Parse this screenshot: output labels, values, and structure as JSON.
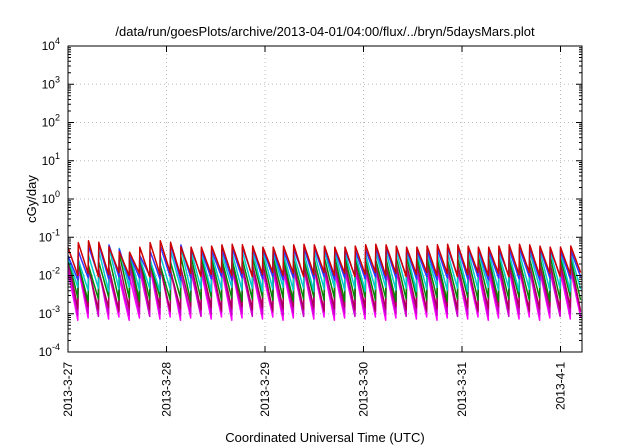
{
  "chart_data": {
    "type": "line",
    "title": "/data/run/goesPlots/archive/2013-04-01/04:00/flux/../bryn/5daysMars.plot",
    "xlabel": "Coordinated Universal Time (UTC)",
    "ylabel": "cGy/day",
    "yscale": "log",
    "ylim": [
      0.0001,
      10000
    ],
    "xlim": [
      "2013-03-27 00:00",
      "2013-04-01 06:00"
    ],
    "grid": true,
    "y_ticks": [
      {
        "base": "10",
        "exp": "-4"
      },
      {
        "base": "10",
        "exp": "-3"
      },
      {
        "base": "10",
        "exp": "-2"
      },
      {
        "base": "10",
        "exp": "-1"
      },
      {
        "base": "10",
        "exp": "0"
      },
      {
        "base": "10",
        "exp": "1"
      },
      {
        "base": "10",
        "exp": "2"
      },
      {
        "base": "10",
        "exp": "3"
      },
      {
        "base": "10",
        "exp": "4"
      }
    ],
    "x_ticks": [
      "2013-3-27",
      "2013-3-28",
      "2013-3-29",
      "2013-3-30",
      "2013-3-31",
      "2013-4-1"
    ],
    "pattern": {
      "cycles_per_day": 9.6,
      "description_peak_values": "sawtooth bursts",
      "series": [
        {
          "color": "#ff00ff",
          "peak": 0.013,
          "trough": 0.0008
        },
        {
          "color": "#cc00cc",
          "peak": 0.016,
          "trough": 0.001
        },
        {
          "color": "#aa0055",
          "peak": 0.02,
          "trough": 0.0014
        },
        {
          "color": "#008800",
          "peak": 0.028,
          "trough": 0.0025
        },
        {
          "color": "#00cccc",
          "peak": 0.04,
          "trough": 0.0045
        },
        {
          "color": "#3333ff",
          "peak": 0.05,
          "trough": 0.009
        },
        {
          "color": "#cc0000",
          "peak": 0.06,
          "trough": 0.011
        }
      ]
    }
  }
}
